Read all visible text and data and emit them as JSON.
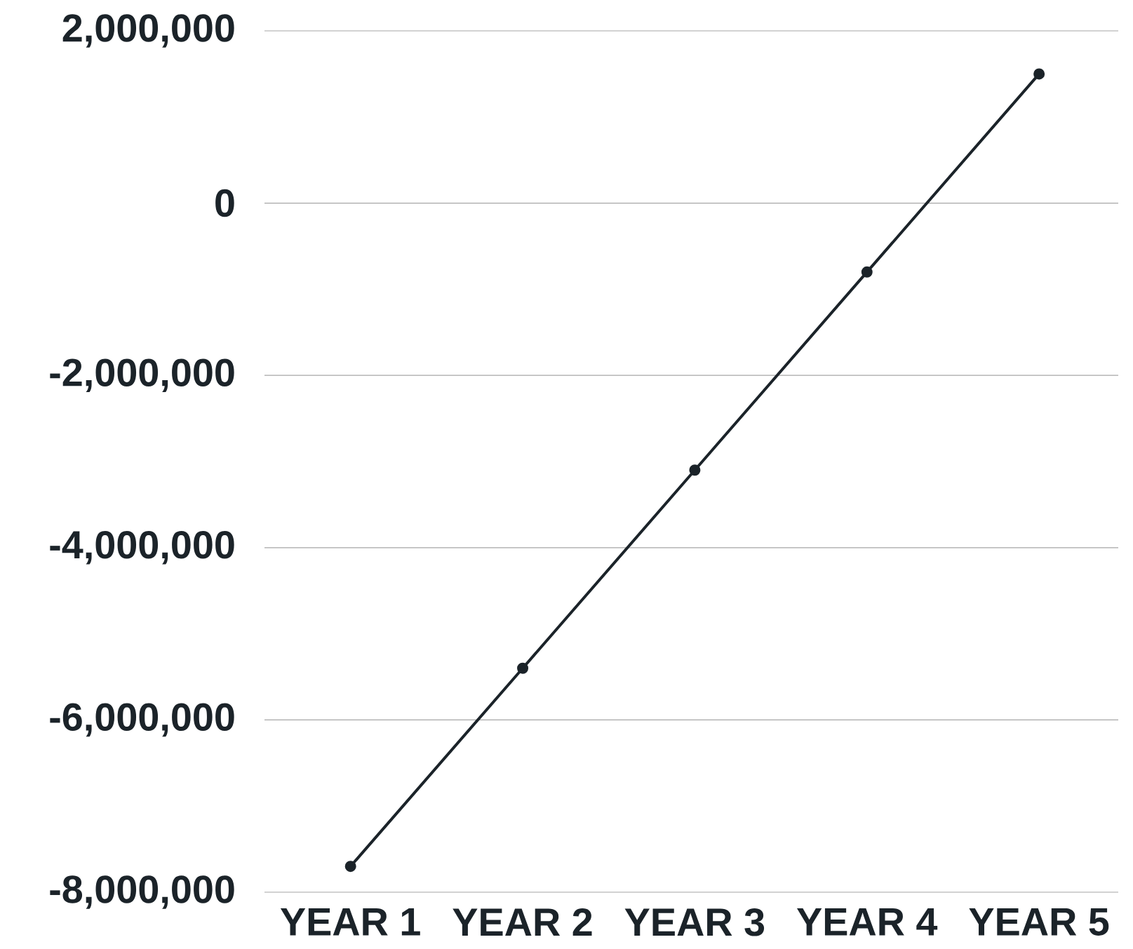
{
  "chart_data": {
    "type": "line",
    "categories": [
      "YEAR 1",
      "YEAR 2",
      "YEAR 3",
      "YEAR 4",
      "YEAR 5"
    ],
    "values": [
      -7700000,
      -5400000,
      -3100000,
      -800000,
      1500000
    ],
    "color": "#1b2329",
    "marker": "circle",
    "ylim": [
      -8000000,
      2000000
    ],
    "yticks": [
      {
        "value": -8000000,
        "label": "-8,000,000"
      },
      {
        "value": -6000000,
        "label": "-6,000,000"
      },
      {
        "value": -4000000,
        "label": "-4,000,000"
      },
      {
        "value": -2000000,
        "label": "-2,000,000"
      },
      {
        "value": 0,
        "label": "0"
      },
      {
        "value": 2000000,
        "label": "2,000,000"
      }
    ],
    "grid": "y"
  }
}
